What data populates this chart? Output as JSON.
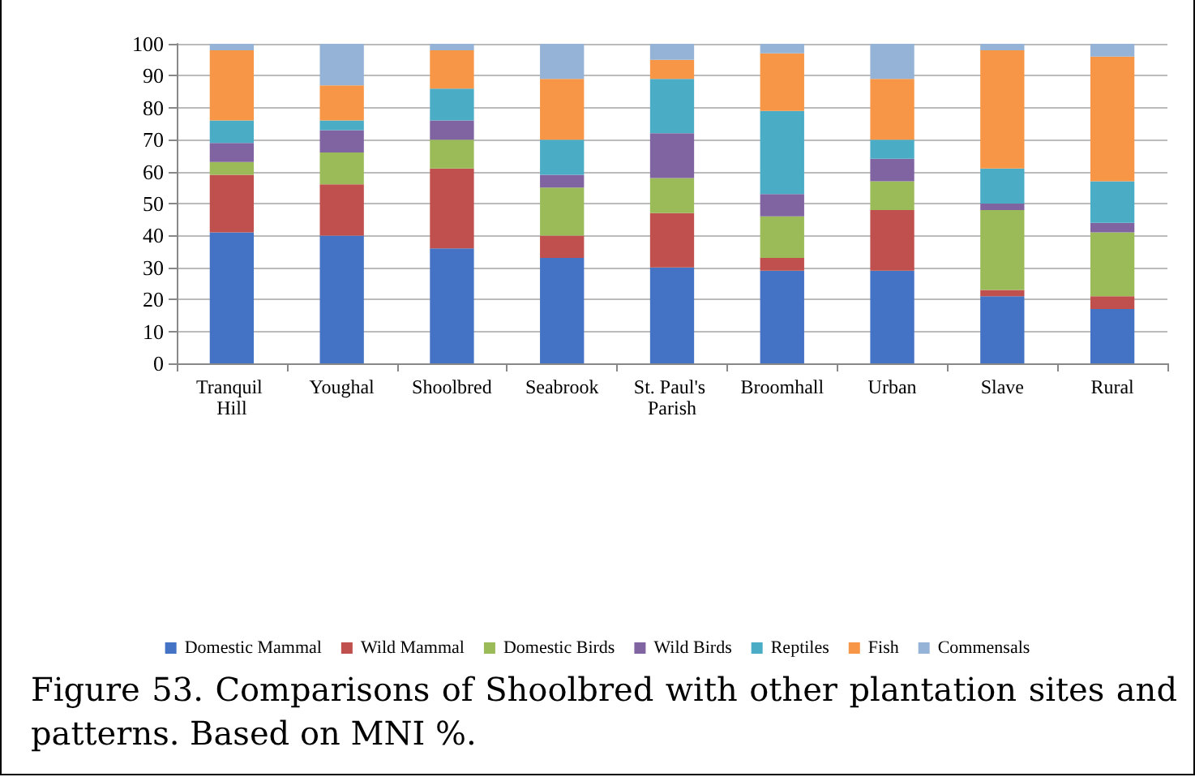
{
  "chart_data": {
    "type": "bar",
    "stacked": true,
    "categories": [
      "Tranquil Hill",
      "Youghal",
      "Shoolbred",
      "Seabrook",
      "St. Paul's Parish",
      "Broomhall",
      "Urban",
      "Slave",
      "Rural"
    ],
    "series": [
      {
        "name": "Domestic Mammal",
        "color": "#4472c4",
        "values": [
          41,
          40,
          36,
          33,
          30,
          29,
          29,
          21,
          17
        ]
      },
      {
        "name": "Wild Mammal",
        "color": "#c0504d",
        "values": [
          18,
          16,
          25,
          7,
          17,
          4,
          19,
          2,
          4
        ]
      },
      {
        "name": "Domestic Birds",
        "color": "#9bbb59",
        "values": [
          4,
          10,
          9,
          15,
          11,
          13,
          9,
          25,
          20
        ]
      },
      {
        "name": "Wild Birds",
        "color": "#8064a2",
        "values": [
          6,
          7,
          6,
          4,
          14,
          7,
          7,
          2,
          3
        ]
      },
      {
        "name": "Reptiles",
        "color": "#4bacc6",
        "values": [
          7,
          3,
          10,
          11,
          17,
          26,
          6,
          11,
          13
        ]
      },
      {
        "name": "Fish",
        "color": "#f79646",
        "values": [
          22,
          11,
          12,
          19,
          6,
          18,
          19,
          37,
          39
        ]
      },
      {
        "name": "Commensals",
        "color": "#95b3d7",
        "values": [
          2,
          13,
          2,
          11,
          5,
          3,
          11,
          2,
          4
        ]
      }
    ],
    "ylim": [
      0,
      100
    ],
    "yticks": [
      0,
      10,
      20,
      30,
      40,
      50,
      60,
      70,
      80,
      90,
      100
    ],
    "grid": "y",
    "legend": "bottom",
    "annotations": [
      "Figure 53. Comparisons of Shoolbred with other plantation sites and patterns. Based on MNI %."
    ]
  }
}
